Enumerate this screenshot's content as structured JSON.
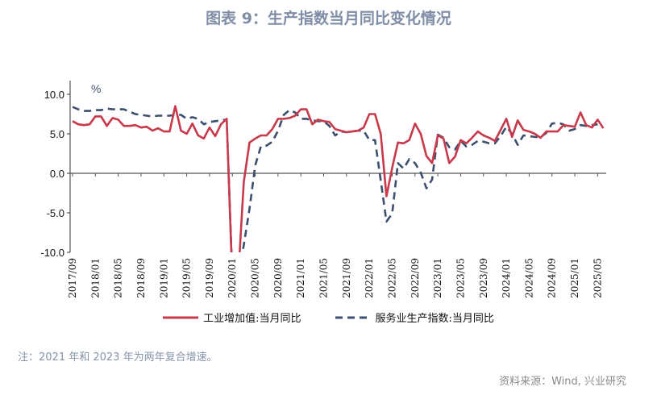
{
  "title": "图表 9：生产指数当月同比变化情况",
  "note": "注：2021 年和 2023 年为两年复合增速。",
  "source": "资料来源：Wind, 兴业研究",
  "chart_data": {
    "type": "line",
    "unit_label": "%",
    "ylim": [
      -10,
      10
    ],
    "yticks": [
      "10.0",
      "5.0",
      "0.0",
      "-5.0",
      "-10.0"
    ],
    "ytick_values": [
      10,
      5,
      0,
      -5,
      -10
    ],
    "start_month": "2017/09",
    "xtick_labels": [
      "2017/09",
      "2018/01",
      "2018/05",
      "2018/09",
      "2019/01",
      "2019/05",
      "2019/09",
      "2020/01",
      "2020/05",
      "2020/09",
      "2021/01",
      "2021/05",
      "2021/09",
      "2022/01",
      "2022/05",
      "2022/09",
      "2023/01",
      "2023/05",
      "2023/09",
      "2024/01",
      "2024/05",
      "2024/09",
      "2025/01",
      "2025/05"
    ],
    "legend_position": "bottom",
    "grid": false,
    "series": [
      {
        "name": "工业增加值:当月同比",
        "color": "#c8394b",
        "style": "solid",
        "values": [
          6.6,
          6.2,
          6.1,
          6.2,
          7.2,
          7.2,
          6.0,
          7.0,
          6.8,
          6.0,
          6.0,
          6.1,
          5.8,
          5.9,
          5.4,
          5.7,
          5.3,
          5.3,
          8.5,
          5.4,
          5.0,
          6.3,
          4.8,
          4.4,
          5.8,
          4.7,
          6.2,
          6.9,
          -13.5,
          -13.5,
          -1.1,
          3.9,
          4.4,
          4.8,
          4.8,
          5.6,
          6.9,
          6.9,
          7.0,
          7.3,
          8.1,
          8.1,
          6.2,
          6.8,
          6.6,
          6.5,
          5.6,
          5.4,
          5.2,
          5.3,
          5.4,
          5.8,
          7.5,
          7.5,
          5.0,
          -2.9,
          0.7,
          3.9,
          3.8,
          4.2,
          6.3,
          5.0,
          2.2,
          1.3,
          4.8,
          4.4,
          1.3,
          2.1,
          4.2,
          3.8,
          4.5,
          5.3,
          4.8,
          4.5,
          4.1,
          5.5,
          6.9,
          4.6,
          6.7,
          5.5,
          5.3,
          5.0,
          4.5,
          5.3,
          5.3,
          5.3,
          6.1,
          6.0,
          5.9,
          7.7,
          6.1,
          5.8,
          6.8,
          5.7
        ]
      },
      {
        "name": "服务业生产指数:当月同比",
        "color": "#3d4f6e",
        "style": "dashed",
        "values": [
          8.4,
          8.1,
          7.9,
          7.9,
          8.0,
          8.0,
          8.2,
          8.1,
          8.1,
          8.1,
          7.8,
          7.5,
          7.4,
          7.3,
          7.2,
          7.3,
          7.3,
          7.3,
          7.4,
          7.4,
          6.9,
          7.1,
          6.9,
          6.2,
          6.5,
          6.6,
          6.7,
          6.8,
          -13.0,
          -13.0,
          -9.1,
          -4.5,
          1.0,
          3.4,
          3.5,
          4.0,
          5.4,
          7.4,
          8.0,
          7.7,
          6.9,
          6.9,
          6.7,
          6.6,
          6.6,
          6.0,
          4.8,
          5.3,
          5.2,
          5.3,
          5.4,
          5.4,
          4.2,
          4.2,
          -0.9,
          -6.1,
          -5.1,
          1.3,
          0.6,
          1.8,
          1.3,
          0.1,
          -1.9,
          -0.8,
          4.9,
          4.5,
          3.3,
          3.0,
          4.1,
          3.4,
          3.6,
          4.1,
          4.0,
          3.8,
          3.8,
          4.7,
          5.9,
          5.0,
          3.6,
          4.8,
          4.7,
          4.6,
          4.6,
          5.1,
          6.3,
          6.4,
          6.2,
          5.4,
          5.6,
          6.1,
          6.0,
          6.1,
          6.2,
          null
        ]
      }
    ]
  }
}
